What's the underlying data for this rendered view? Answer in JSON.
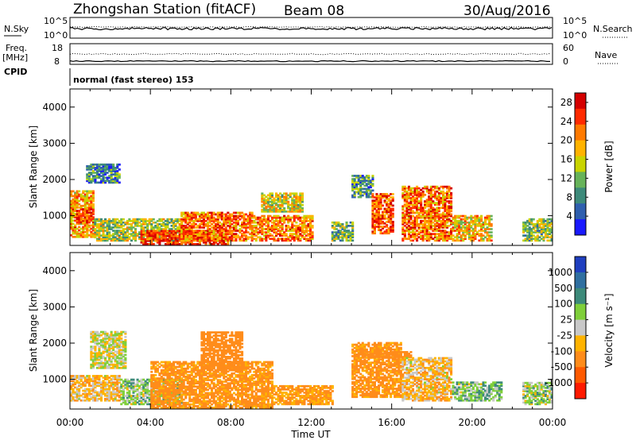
{
  "header": {
    "station": "Zhongshan Station (fitACF)",
    "beam": "Beam 08",
    "date": "30/Aug/2016"
  },
  "strips": {
    "nsky_label": "N.Sky",
    "nsky_ticks": [
      "10^5",
      "10^0"
    ],
    "nsearch_label": "N.Search",
    "nsearch_ticks": [
      "10^5",
      "10^0"
    ],
    "freq_label_1": "Freq.",
    "freq_label_2": "[MHz]",
    "freq_ticks": [
      "18",
      "8"
    ],
    "nave_label": "Nave",
    "nave_ticks": [
      "60",
      "0"
    ],
    "cpid_label": "CPID",
    "cpid_value": "normal (fast stereo) 153"
  },
  "chart_data": [
    {
      "type": "heatmap",
      "name": "power",
      "ylabel": "Slant Range [km]",
      "xlabel": "Time UT",
      "ylim": [
        180,
        4500
      ],
      "y_ticks": [
        "1000",
        "2000",
        "3000",
        "4000"
      ],
      "y_values": [
        1000,
        2000,
        3000,
        4000
      ],
      "x_ticks": [
        "00:00",
        "04:00",
        "08:00",
        "12:00",
        "16:00",
        "20:00",
        "00:00"
      ],
      "x_hours": [
        0,
        4,
        8,
        12,
        16,
        20,
        24
      ],
      "colorbar_label": "Power [dB]",
      "colorbar_ticks": [
        "4",
        "8",
        "12",
        "16",
        "20",
        "24",
        "28"
      ],
      "colorbar_range": [
        0,
        30
      ],
      "colors": [
        "#1a1aff",
        "#2f5fae",
        "#3d8a7a",
        "#67b35a",
        "#c9d400",
        "#ffb300",
        "#ff7a00",
        "#ff2a00",
        "#d40000"
      ],
      "regions": [
        {
          "t0": 0.0,
          "t1": 1.2,
          "r0": 400,
          "r1": 1700,
          "level": 20
        },
        {
          "t0": 0.3,
          "t1": 1.0,
          "r0": 800,
          "r1": 1200,
          "level": 26
        },
        {
          "t0": 0.8,
          "t1": 2.5,
          "r0": 1900,
          "r1": 2400,
          "level": 8
        },
        {
          "t0": 1.2,
          "t1": 5.5,
          "r0": 300,
          "r1": 900,
          "level": 14
        },
        {
          "t0": 3.5,
          "t1": 7.8,
          "r0": 200,
          "r1": 600,
          "level": 26
        },
        {
          "t0": 5.5,
          "t1": 9.0,
          "r0": 300,
          "r1": 1100,
          "level": 22
        },
        {
          "t0": 9.0,
          "t1": 12.0,
          "r0": 300,
          "r1": 1000,
          "level": 21
        },
        {
          "t0": 9.5,
          "t1": 11.5,
          "r0": 1100,
          "r1": 1600,
          "level": 16
        },
        {
          "t0": 13.0,
          "t1": 14.0,
          "r0": 300,
          "r1": 800,
          "level": 12
        },
        {
          "t0": 14.0,
          "t1": 15.0,
          "r0": 1500,
          "r1": 2100,
          "level": 9
        },
        {
          "t0": 15.0,
          "t1": 16.0,
          "r0": 500,
          "r1": 1600,
          "level": 24
        },
        {
          "t0": 16.5,
          "t1": 19.0,
          "r0": 300,
          "r1": 1800,
          "level": 22
        },
        {
          "t0": 19.0,
          "t1": 21.0,
          "r0": 300,
          "r1": 1000,
          "level": 18
        },
        {
          "t0": 22.5,
          "t1": 24.0,
          "r0": 300,
          "r1": 900,
          "level": 13
        }
      ]
    },
    {
      "type": "heatmap",
      "name": "velocity",
      "ylabel": "Slant Range [km]",
      "xlabel": "Time UT",
      "ylim": [
        180,
        4500
      ],
      "y_ticks": [
        "1000",
        "2000",
        "3000",
        "4000"
      ],
      "y_values": [
        1000,
        2000,
        3000,
        4000
      ],
      "x_ticks": [
        "00:00",
        "04:00",
        "08:00",
        "12:00",
        "16:00",
        "20:00",
        "00:00"
      ],
      "x_hours": [
        0,
        4,
        8,
        12,
        16,
        20,
        24
      ],
      "colorbar_label": "Velocity [m s⁻¹]",
      "colorbar_ticks": [
        "1000",
        "500",
        "100",
        "25",
        "-25",
        "-100",
        "-500",
        "-1000"
      ],
      "colors": [
        "#1f3fbf",
        "#2f6fa0",
        "#3d8a7a",
        "#7fcf3a",
        "#c8c8c8",
        "#ffb300",
        "#ff8c1a",
        "#ff5a00",
        "#ff1a00"
      ],
      "regions": [
        {
          "t0": 0.0,
          "t1": 2.5,
          "r0": 400,
          "r1": 1100,
          "level": -60
        },
        {
          "t0": 1.0,
          "t1": 2.8,
          "r0": 1300,
          "r1": 2300,
          "level": 0
        },
        {
          "t0": 2.5,
          "t1": 5.5,
          "r0": 300,
          "r1": 1000,
          "level": 50
        },
        {
          "t0": 4.0,
          "t1": 10.0,
          "r0": 200,
          "r1": 1500,
          "level": -150
        },
        {
          "t0": 6.5,
          "t1": 8.5,
          "r0": 1200,
          "r1": 2300,
          "level": -200
        },
        {
          "t0": 10.0,
          "t1": 13.0,
          "r0": 300,
          "r1": 800,
          "level": -120
        },
        {
          "t0": 14.0,
          "t1": 16.5,
          "r0": 500,
          "r1": 2000,
          "level": -150
        },
        {
          "t0": 14.5,
          "t1": 17.0,
          "r0": 1600,
          "r1": 1750,
          "level": -300
        },
        {
          "t0": 16.5,
          "t1": 19.0,
          "r0": 400,
          "r1": 1600,
          "level": -60
        },
        {
          "t0": 19.0,
          "t1": 21.5,
          "r0": 400,
          "r1": 900,
          "level": 60
        },
        {
          "t0": 22.5,
          "t1": 24.0,
          "r0": 300,
          "r1": 900,
          "level": 40
        }
      ]
    }
  ]
}
